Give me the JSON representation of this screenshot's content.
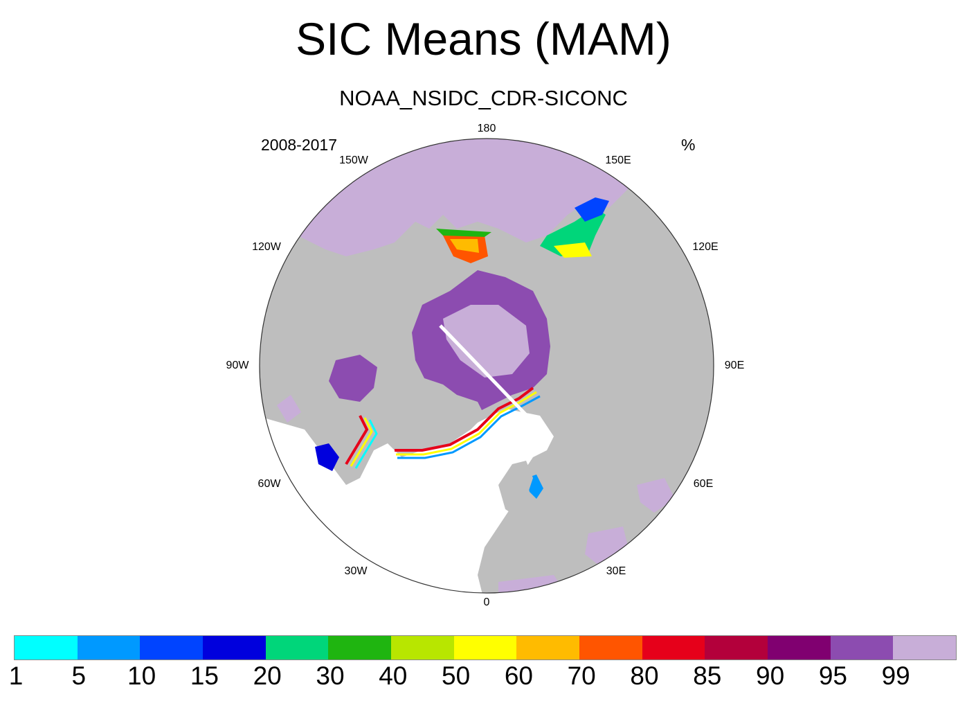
{
  "title": "SIC Means (MAM)",
  "subtitle": "NOAA_NSIDC_CDR-SICONC",
  "period": "2008-2017",
  "units": "%",
  "longitude_labels": {
    "lon_180": "180",
    "lon_150e": "150E",
    "lon_120e": "120E",
    "lon_90e": "90E",
    "lon_60e": "60E",
    "lon_30e": "30E",
    "lon_0": "0",
    "lon_30w": "30W",
    "lon_60w": "60W",
    "lon_90w": "90W",
    "lon_120w": "120W",
    "lon_150w": "150W"
  },
  "colors": {
    "land": "#bebebe",
    "ocean": "#ffffff",
    "full_ice": "#c8aed8",
    "dense_ice": "#8c4cb0"
  },
  "colorbar": {
    "colors": [
      "#00ffff",
      "#0099ff",
      "#0044ff",
      "#0000dd",
      "#00d67a",
      "#1fb510",
      "#b8e600",
      "#ffff00",
      "#ffbb00",
      "#ff5500",
      "#e6001a",
      "#b3003b",
      "#800070",
      "#8c4cb0",
      "#c8aed8"
    ],
    "tick_labels": [
      "1",
      "5",
      "10",
      "15",
      "20",
      "30",
      "40",
      "50",
      "60",
      "70",
      "80",
      "85",
      "90",
      "95",
      "99"
    ]
  }
}
